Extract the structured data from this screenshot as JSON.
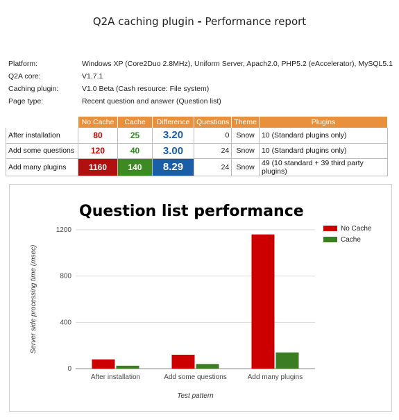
{
  "header": {
    "title_part1": "Q2A caching plugin ",
    "title_sep": "-",
    "title_part2": " Performance report"
  },
  "info": [
    {
      "key": "Platform:",
      "value": "Windows XP (Core2Duo 2.8MHz), Uniform Server, Apach2.0, PHP5.2 (eAccelerator), MySQL5.1"
    },
    {
      "key": "Q2A core:",
      "value": "V1.7.1"
    },
    {
      "key": "Caching plugin:",
      "value": "V1.0 Beta (Cash resource: File system)"
    },
    {
      "key": "Page type:",
      "value": "Recent question and answer (Question list)"
    }
  ],
  "table": {
    "headers": [
      "",
      "No Cache",
      "Cache",
      "Difference",
      "Questions",
      "Theme",
      "Plugins"
    ],
    "rows": [
      {
        "label": "After installation",
        "no_cache": "80",
        "cache": "25",
        "difference": "3.20",
        "questions": "0",
        "theme": "Snow",
        "plugins": "10 (Standard plugins only)"
      },
      {
        "label": "Add some questions",
        "no_cache": "120",
        "cache": "40",
        "difference": "3.00",
        "questions": "24",
        "theme": "Snow",
        "plugins": "10 (Standard plugins only)"
      },
      {
        "label": "Add many plugins",
        "no_cache": "1160",
        "cache": "140",
        "difference": "8.29",
        "questions": "24",
        "theme": "Snow",
        "plugins": "49 (10 standard + 39 third party plugins)"
      }
    ]
  },
  "colors": {
    "no_cache": "#cc0000",
    "cache": "#3a7d22",
    "header_bg": "#e8903c",
    "difference": "#1b5ea8"
  },
  "chart_data": {
    "type": "bar",
    "title": "Question list performance",
    "xlabel": "Test pattern",
    "ylabel": "Server side processing time (msec)",
    "categories": [
      "After installation",
      "Add some questions",
      "Add many plugins"
    ],
    "series": [
      {
        "name": "No Cache",
        "values": [
          80,
          120,
          1160
        ],
        "color": "#cc0000"
      },
      {
        "name": "Cache",
        "values": [
          25,
          40,
          140
        ],
        "color": "#3a7d22"
      }
    ],
    "ylim": [
      0,
      1200
    ],
    "yticks": [
      0,
      400,
      800,
      1200
    ],
    "legend": "top-right",
    "grid": true
  }
}
